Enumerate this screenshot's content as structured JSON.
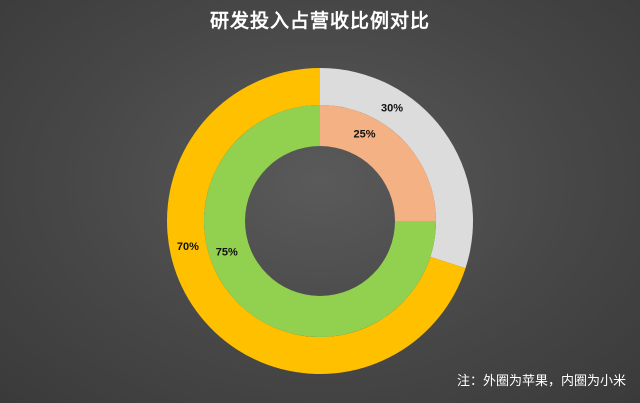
{
  "chart_data": {
    "type": "pie",
    "subtype": "double-donut",
    "title": "研发投入占营收比例对比",
    "note": "注：外圈为苹果，内圈为小米",
    "series": [
      {
        "ring": "outer",
        "slices": [
          {
            "label": "30%",
            "value": 30,
            "color": "#dcdcdc"
          },
          {
            "label": "70%",
            "value": 70,
            "color": "#ffc000"
          }
        ]
      },
      {
        "ring": "inner",
        "slices": [
          {
            "label": "25%",
            "value": 25,
            "color": "#f4b183"
          },
          {
            "label": "75%",
            "value": 75,
            "color": "#92d050"
          }
        ]
      }
    ],
    "start_angle_deg": 0,
    "direction": "clockwise"
  }
}
